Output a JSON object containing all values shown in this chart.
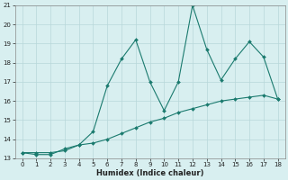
{
  "xlabel": "Humidex (Indice chaleur)",
  "x": [
    0,
    1,
    2,
    3,
    4,
    5,
    6,
    7,
    8,
    9,
    10,
    11,
    12,
    13,
    14,
    15,
    16,
    17,
    18
  ],
  "spiky_y": [
    13.3,
    13.2,
    13.2,
    13.5,
    13.7,
    14.4,
    16.8,
    18.2,
    19.2,
    17.0,
    15.5,
    17.0,
    21.0,
    18.7,
    17.1,
    18.2,
    19.1,
    18.3,
    16.1
  ],
  "smooth_y": [
    13.3,
    13.3,
    13.3,
    13.4,
    13.7,
    13.8,
    14.0,
    14.3,
    14.6,
    14.9,
    15.1,
    15.4,
    15.6,
    15.8,
    16.0,
    16.1,
    16.2,
    16.3,
    16.1
  ],
  "line_color": "#1a7a6e",
  "bg_color": "#d8eff0",
  "grid_color": "#b8d8da",
  "ylim": [
    13,
    21
  ],
  "xlim": [
    -0.5,
    18.5
  ],
  "yticks": [
    13,
    14,
    15,
    16,
    17,
    18,
    19,
    20,
    21
  ],
  "xticks": [
    0,
    1,
    2,
    3,
    4,
    5,
    6,
    7,
    8,
    9,
    10,
    11,
    12,
    13,
    14,
    15,
    16,
    17,
    18
  ]
}
